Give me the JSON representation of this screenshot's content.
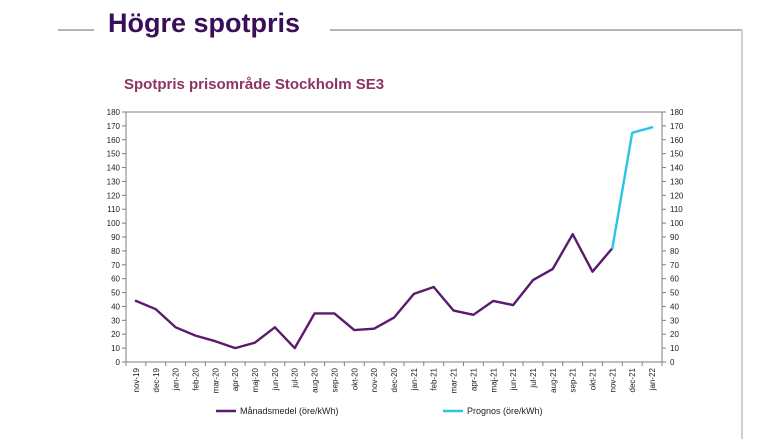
{
  "header": {
    "title": "Högre spotpris"
  },
  "colors": {
    "monthly": "#5a1a6e",
    "forecast": "#29c4e8",
    "title": "#8e3363",
    "header": "#3a0f5a"
  },
  "chart_data": {
    "type": "line",
    "title": "Spotpris prisområde Stockholm SE3",
    "xlabel": "",
    "ylabel": "",
    "ylim": [
      0,
      180
    ],
    "yticks": [
      0,
      10,
      20,
      30,
      40,
      50,
      60,
      70,
      80,
      90,
      100,
      110,
      120,
      130,
      140,
      150,
      160,
      170,
      180
    ],
    "grid": false,
    "legend_position": "bottom",
    "categories": [
      "nov-19",
      "dec-19",
      "jan-20",
      "feb-20",
      "mar-20",
      "apr-20",
      "maj-20",
      "jun-20",
      "jul-20",
      "aug-20",
      "sep-20",
      "okt-20",
      "nov-20",
      "dec-20",
      "jan-21",
      "feb-21",
      "mar-21",
      "apr-21",
      "maj-21",
      "jun-21",
      "jul-21",
      "aug-21",
      "sep-21",
      "okt-21",
      "nov-21",
      "dec-21",
      "jan-22"
    ],
    "series": [
      {
        "name": "Månadsmedel (öre/kWh)",
        "values": [
          44,
          38,
          25,
          19,
          15,
          10,
          14,
          25,
          10,
          35,
          35,
          23,
          24,
          32,
          49,
          54,
          37,
          34,
          44,
          41,
          59,
          67,
          92,
          65,
          82,
          null,
          null
        ]
      },
      {
        "name": "Prognos (öre/kWh)",
        "values": [
          null,
          null,
          null,
          null,
          null,
          null,
          null,
          null,
          null,
          null,
          null,
          null,
          null,
          null,
          null,
          null,
          null,
          null,
          null,
          null,
          null,
          null,
          null,
          null,
          82,
          165,
          169
        ]
      }
    ]
  }
}
